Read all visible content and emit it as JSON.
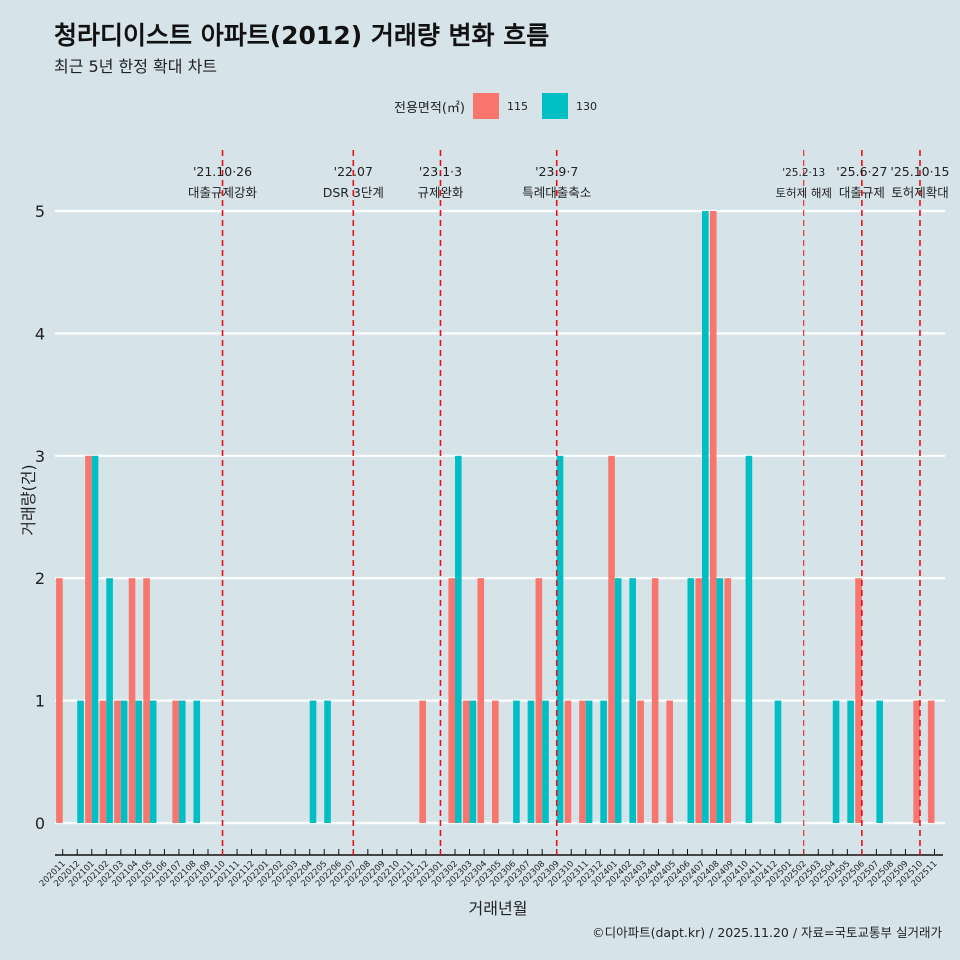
{
  "chart_data": {
    "type": "bar",
    "title": "청라디이스트 아파트(2012) 거래량 변화 흐름",
    "subtitle": "최근 5년 한정 확대 차트",
    "xlabel": "거래년월",
    "ylabel": "거래량(건)",
    "ylim": [
      0,
      5
    ],
    "yticks": [
      "0",
      "1",
      "2",
      "3",
      "4",
      "5"
    ],
    "legend": {
      "title": "전용면적(㎡)",
      "placement": "top"
    },
    "categories": [
      "202011",
      "202012",
      "202101",
      "202102",
      "202103",
      "202104",
      "202105",
      "202106",
      "202107",
      "202108",
      "202109",
      "202110",
      "202111",
      "202112",
      "202201",
      "202202",
      "202203",
      "202204",
      "202205",
      "202206",
      "202207",
      "202208",
      "202209",
      "202210",
      "202211",
      "202212",
      "202301",
      "202302",
      "202303",
      "202304",
      "202305",
      "202306",
      "202307",
      "202308",
      "202309",
      "202310",
      "202311",
      "202312",
      "202401",
      "202402",
      "202403",
      "202404",
      "202405",
      "202406",
      "202407",
      "202408",
      "202409",
      "202410",
      "202411",
      "202412",
      "202501",
      "202502",
      "202503",
      "202504",
      "202505",
      "202506",
      "202507",
      "202508",
      "202509",
      "202510",
      "202511"
    ],
    "series": [
      {
        "name": "115",
        "color": "#f8766d",
        "values": [
          2,
          0,
          3,
          1,
          1,
          2,
          2,
          0,
          1,
          0,
          0,
          0,
          0,
          0,
          0,
          0,
          0,
          0,
          0,
          0,
          0,
          0,
          0,
          0,
          0,
          1,
          0,
          2,
          1,
          2,
          1,
          0,
          0,
          2,
          0,
          1,
          1,
          0,
          3,
          0,
          1,
          2,
          1,
          0,
          2,
          5,
          2,
          0,
          0,
          0,
          0,
          0,
          0,
          0,
          0,
          2,
          0,
          0,
          0,
          1,
          1
        ]
      },
      {
        "name": "130",
        "color": "#00bfc4",
        "values": [
          0,
          1,
          3,
          2,
          1,
          1,
          1,
          0,
          1,
          1,
          0,
          0,
          0,
          0,
          0,
          0,
          0,
          1,
          1,
          0,
          0,
          0,
          0,
          0,
          0,
          0,
          0,
          3,
          1,
          0,
          0,
          1,
          1,
          1,
          3,
          0,
          1,
          1,
          2,
          2,
          0,
          0,
          0,
          2,
          5,
          2,
          0,
          3,
          0,
          1,
          0,
          0,
          0,
          1,
          1,
          0,
          1,
          0,
          0,
          0,
          0
        ]
      }
    ],
    "annotations": [
      {
        "category": "202110",
        "date": "'21.10·26",
        "label": "대출규제강화",
        "small": false
      },
      {
        "category": "202207",
        "date": "'22.07",
        "label": "DSR 3단계",
        "small": false
      },
      {
        "category": "202301",
        "date": "'23.1·3",
        "label": "규제완화",
        "small": false
      },
      {
        "category": "202309",
        "date": "'23.9·7",
        "label": "특례대출축소",
        "small": false
      },
      {
        "category": "202502",
        "date": "'25.2·13",
        "label": "토허제 해제",
        "small": true
      },
      {
        "category": "202506",
        "date": "'25.6·27",
        "label": "대출규제",
        "small": false
      },
      {
        "category": "202510",
        "date": "'25.10·15",
        "label": "토허제확대",
        "small": false
      }
    ],
    "caption": "©디아파트(dapt.kr) / 2025.11.20 / 자료=국토교통부 실거래가"
  }
}
